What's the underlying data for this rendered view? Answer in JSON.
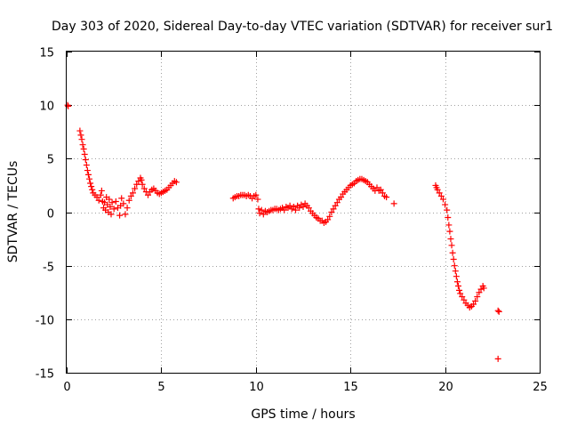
{
  "chart_data": {
    "type": "scatter",
    "title": "Day 303 of 2020, Sidereal Day-to-day VTEC variation (SDTVAR) for receiver sur1",
    "xlabel": "GPS time / hours",
    "ylabel": "SDTVAR / TECUs",
    "xlim": [
      0,
      25
    ],
    "ylim": [
      -15,
      15
    ],
    "xticks": [
      0,
      5,
      10,
      15,
      20,
      25
    ],
    "yticks": [
      -15,
      -10,
      -5,
      0,
      5,
      10,
      15
    ],
    "xtick_labels": [
      "0",
      "5",
      "10",
      "15",
      "20",
      "25"
    ],
    "ytick_labels": [
      "-15",
      "-10",
      "-5",
      "0",
      "5",
      "10",
      "15"
    ],
    "grid": true,
    "marker": "plus",
    "color": "#ff0000",
    "series": [
      {
        "name": "SDTVAR",
        "points": [
          [
            0.05,
            10.0
          ],
          [
            0.08,
            9.9
          ],
          [
            0.7,
            7.6
          ],
          [
            0.75,
            7.2
          ],
          [
            0.8,
            6.8
          ],
          [
            0.85,
            6.3
          ],
          [
            0.9,
            5.9
          ],
          [
            0.95,
            5.4
          ],
          [
            1.0,
            4.9
          ],
          [
            1.05,
            4.4
          ],
          [
            1.1,
            3.9
          ],
          [
            1.15,
            3.5
          ],
          [
            1.2,
            3.1
          ],
          [
            1.25,
            2.7
          ],
          [
            1.3,
            2.4
          ],
          [
            1.35,
            2.1
          ],
          [
            1.4,
            1.8
          ],
          [
            1.5,
            1.6
          ],
          [
            1.6,
            1.4
          ],
          [
            1.7,
            1.1
          ],
          [
            1.8,
            1.6
          ],
          [
            1.85,
            2.0
          ],
          [
            1.9,
            1.0
          ],
          [
            1.95,
            0.4
          ],
          [
            2.0,
            0.9
          ],
          [
            2.05,
            0.2
          ],
          [
            2.1,
            1.4
          ],
          [
            2.15,
            0.7
          ],
          [
            2.2,
            0.0
          ],
          [
            2.25,
            1.2
          ],
          [
            2.3,
            0.5
          ],
          [
            2.35,
            -0.2
          ],
          [
            2.4,
            0.9
          ],
          [
            2.5,
            0.3
          ],
          [
            2.6,
            1.0
          ],
          [
            2.7,
            0.4
          ],
          [
            2.8,
            -0.3
          ],
          [
            2.85,
            0.6
          ],
          [
            2.9,
            1.3
          ],
          [
            3.0,
            0.8
          ],
          [
            3.1,
            -0.2
          ],
          [
            3.2,
            0.4
          ],
          [
            3.3,
            1.1
          ],
          [
            3.4,
            1.5
          ],
          [
            3.5,
            1.8
          ],
          [
            3.6,
            2.2
          ],
          [
            3.7,
            2.6
          ],
          [
            3.8,
            2.9
          ],
          [
            3.9,
            3.2
          ],
          [
            3.95,
            3.0
          ],
          [
            4.0,
            2.6
          ],
          [
            4.1,
            2.2
          ],
          [
            4.2,
            1.9
          ],
          [
            4.3,
            1.6
          ],
          [
            4.4,
            1.9
          ],
          [
            4.5,
            2.1
          ],
          [
            4.6,
            2.2
          ],
          [
            4.7,
            2.0
          ],
          [
            4.8,
            1.8
          ],
          [
            4.9,
            1.7
          ],
          [
            5.0,
            1.8
          ],
          [
            5.1,
            1.9
          ],
          [
            5.2,
            2.0
          ],
          [
            5.3,
            2.1
          ],
          [
            5.4,
            2.3
          ],
          [
            5.5,
            2.5
          ],
          [
            5.6,
            2.7
          ],
          [
            5.7,
            2.9
          ],
          [
            5.8,
            2.8
          ],
          [
            8.8,
            1.3
          ],
          [
            8.9,
            1.4
          ],
          [
            9.0,
            1.5
          ],
          [
            9.1,
            1.5
          ],
          [
            9.2,
            1.6
          ],
          [
            9.3,
            1.6
          ],
          [
            9.4,
            1.6
          ],
          [
            9.5,
            1.5
          ],
          [
            9.6,
            1.6
          ],
          [
            9.7,
            1.5
          ],
          [
            9.8,
            1.3
          ],
          [
            9.9,
            1.5
          ],
          [
            10.0,
            1.6
          ],
          [
            10.1,
            1.2
          ],
          [
            10.15,
            0.3
          ],
          [
            10.2,
            -0.1
          ],
          [
            10.3,
            0.2
          ],
          [
            10.4,
            -0.2
          ],
          [
            10.5,
            0.1
          ],
          [
            10.6,
            0.0
          ],
          [
            10.7,
            0.1
          ],
          [
            10.8,
            0.2
          ],
          [
            10.9,
            0.2
          ],
          [
            11.0,
            0.3
          ],
          [
            11.1,
            0.3
          ],
          [
            11.2,
            0.2
          ],
          [
            11.3,
            0.3
          ],
          [
            11.4,
            0.4
          ],
          [
            11.5,
            0.2
          ],
          [
            11.6,
            0.5
          ],
          [
            11.7,
            0.4
          ],
          [
            11.8,
            0.6
          ],
          [
            11.9,
            0.3
          ],
          [
            12.0,
            0.5
          ],
          [
            12.1,
            0.2
          ],
          [
            12.2,
            0.6
          ],
          [
            12.3,
            0.4
          ],
          [
            12.4,
            0.7
          ],
          [
            12.5,
            0.5
          ],
          [
            12.6,
            0.8
          ],
          [
            12.7,
            0.6
          ],
          [
            12.8,
            0.4
          ],
          [
            12.9,
            0.1
          ],
          [
            13.0,
            -0.1
          ],
          [
            13.1,
            -0.3
          ],
          [
            13.2,
            -0.5
          ],
          [
            13.3,
            -0.6
          ],
          [
            13.4,
            -0.8
          ],
          [
            13.5,
            -0.8
          ],
          [
            13.6,
            -1.0
          ],
          [
            13.7,
            -0.9
          ],
          [
            13.8,
            -0.7
          ],
          [
            13.9,
            -0.4
          ],
          [
            14.0,
            0.0
          ],
          [
            14.1,
            0.3
          ],
          [
            14.2,
            0.6
          ],
          [
            14.3,
            0.9
          ],
          [
            14.4,
            1.2
          ],
          [
            14.5,
            1.4
          ],
          [
            14.6,
            1.7
          ],
          [
            14.7,
            1.9
          ],
          [
            14.8,
            2.1
          ],
          [
            14.9,
            2.3
          ],
          [
            15.0,
            2.5
          ],
          [
            15.1,
            2.6
          ],
          [
            15.2,
            2.7
          ],
          [
            15.3,
            2.9
          ],
          [
            15.4,
            3.0
          ],
          [
            15.5,
            3.1
          ],
          [
            15.6,
            3.1
          ],
          [
            15.7,
            3.0
          ],
          [
            15.8,
            2.9
          ],
          [
            15.9,
            2.8
          ],
          [
            16.0,
            2.6
          ],
          [
            16.1,
            2.4
          ],
          [
            16.2,
            2.2
          ],
          [
            16.3,
            2.0
          ],
          [
            16.4,
            2.3
          ],
          [
            16.5,
            2.0
          ],
          [
            16.6,
            2.1
          ],
          [
            16.7,
            1.8
          ],
          [
            16.8,
            1.5
          ],
          [
            16.9,
            1.4
          ],
          [
            17.3,
            0.8
          ],
          [
            19.5,
            2.5
          ],
          [
            19.55,
            2.3
          ],
          [
            19.6,
            2.1
          ],
          [
            19.7,
            1.8
          ],
          [
            19.8,
            1.5
          ],
          [
            19.9,
            1.2
          ],
          [
            20.0,
            0.7
          ],
          [
            20.1,
            0.2
          ],
          [
            20.15,
            -0.5
          ],
          [
            20.2,
            -1.2
          ],
          [
            20.25,
            -1.8
          ],
          [
            20.3,
            -2.5
          ],
          [
            20.35,
            -3.1
          ],
          [
            20.4,
            -3.8
          ],
          [
            20.45,
            -4.4
          ],
          [
            20.5,
            -5.0
          ],
          [
            20.55,
            -5.5
          ],
          [
            20.6,
            -6.0
          ],
          [
            20.65,
            -6.5
          ],
          [
            20.7,
            -6.9
          ],
          [
            20.75,
            -7.3
          ],
          [
            20.8,
            -7.6
          ],
          [
            20.9,
            -7.9
          ],
          [
            21.0,
            -8.2
          ],
          [
            21.1,
            -8.5
          ],
          [
            21.2,
            -8.7
          ],
          [
            21.3,
            -8.9
          ],
          [
            21.4,
            -8.8
          ],
          [
            21.5,
            -8.6
          ],
          [
            21.6,
            -8.3
          ],
          [
            21.7,
            -7.9
          ],
          [
            21.8,
            -7.5
          ],
          [
            21.9,
            -7.2
          ],
          [
            22.0,
            -6.9
          ],
          [
            22.05,
            -7.1
          ],
          [
            22.8,
            -9.2
          ],
          [
            22.85,
            -9.3
          ],
          [
            22.8,
            -13.7
          ]
        ]
      }
    ]
  }
}
